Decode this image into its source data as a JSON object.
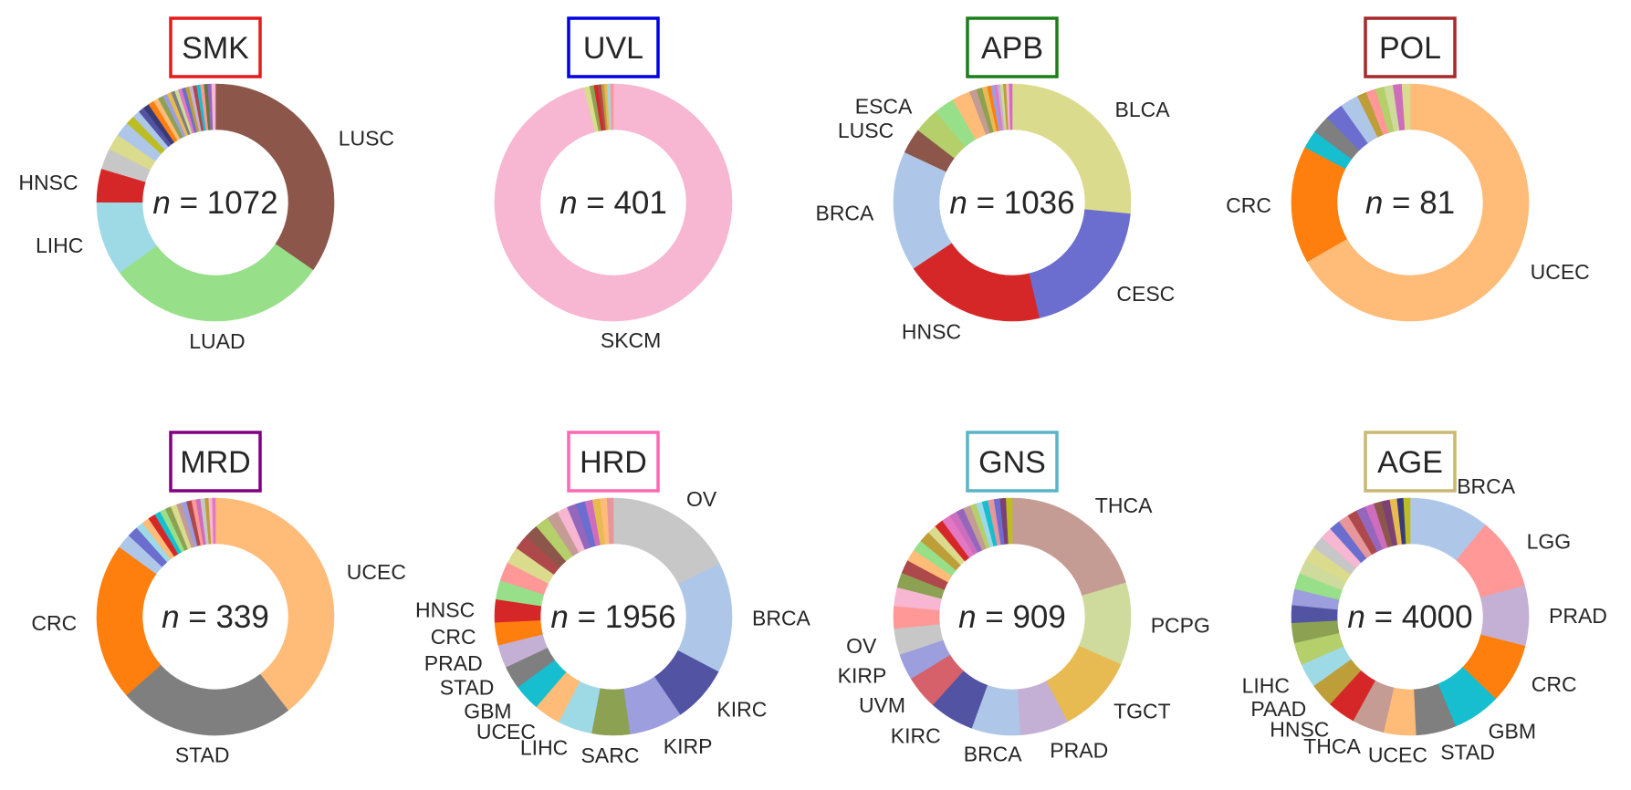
{
  "chart_data": [
    {
      "type": "pie",
      "title": "SMK",
      "title_box_color": "#e41a1c",
      "n_text": "= 1072",
      "n_value": 1072,
      "slices": [
        {
          "label": "LUSC",
          "value": 0.343,
          "color": "#8c564b"
        },
        {
          "label": "LUAD",
          "value": 0.3,
          "color": "#98df8a"
        },
        {
          "label": "LIHC",
          "value": 0.1,
          "color": "#9edae5"
        },
        {
          "label": "HNSC",
          "value": 0.045,
          "color": "#d62728"
        },
        {
          "label": "",
          "value": 0.028,
          "color": "#c7c7c7"
        },
        {
          "label": "",
          "value": 0.022,
          "color": "#dbdb8d"
        },
        {
          "label": "",
          "value": 0.02,
          "color": "#aec7e8"
        },
        {
          "label": "",
          "value": 0.012,
          "color": "#bcbd22"
        },
        {
          "label": "",
          "value": 0.01,
          "color": "#aec7e8"
        },
        {
          "label": "",
          "value": 0.008,
          "color": "#5254a3"
        },
        {
          "label": "",
          "value": 0.008,
          "color": "#393b79"
        },
        {
          "label": "",
          "value": 0.008,
          "color": "#ff7f0e"
        },
        {
          "label": "",
          "value": 0.007,
          "color": "#ffbb78"
        },
        {
          "label": "",
          "value": 0.007,
          "color": "#8ca252"
        },
        {
          "label": "",
          "value": 0.006,
          "color": "#9c9ede"
        },
        {
          "label": "",
          "value": 0.006,
          "color": "#e7ba52"
        },
        {
          "label": "",
          "value": 0.005,
          "color": "#7f7f7f"
        },
        {
          "label": "",
          "value": 0.005,
          "color": "#cedb9c"
        },
        {
          "label": "",
          "value": 0.005,
          "color": "#e377c2"
        },
        {
          "label": "",
          "value": 0.005,
          "color": "#6b6ecf"
        },
        {
          "label": "",
          "value": 0.005,
          "color": "#bd9e39"
        },
        {
          "label": "",
          "value": 0.005,
          "color": "#c5b0d5"
        },
        {
          "label": "",
          "value": 0.005,
          "color": "#ad494a"
        },
        {
          "label": "",
          "value": 0.005,
          "color": "#17becf"
        },
        {
          "label": "",
          "value": 0.005,
          "color": "#ff9896"
        },
        {
          "label": "",
          "value": 0.005,
          "color": "#637939"
        },
        {
          "label": "",
          "value": 0.005,
          "color": "#9467bd"
        },
        {
          "label": "",
          "value": 0.005,
          "color": "#f7b6d2"
        }
      ]
    },
    {
      "type": "pie",
      "title": "UVL",
      "title_box_color": "#0000e0",
      "n_text": "= 401",
      "n_value": 401,
      "slices": [
        {
          "label": "SKCM",
          "value": 0.96,
          "color": "#f7b6d2"
        },
        {
          "label": "",
          "value": 0.008,
          "color": "#dbdb8d"
        },
        {
          "label": "",
          "value": 0.006,
          "color": "#8ca252"
        },
        {
          "label": "",
          "value": 0.005,
          "color": "#d62728"
        },
        {
          "label": "",
          "value": 0.005,
          "color": "#ad494a"
        },
        {
          "label": "",
          "value": 0.004,
          "color": "#bd9e39"
        },
        {
          "label": "",
          "value": 0.004,
          "color": "#e7ba52"
        },
        {
          "label": "",
          "value": 0.004,
          "color": "#9edae5"
        },
        {
          "label": "",
          "value": 0.004,
          "color": "#ff9896"
        }
      ]
    },
    {
      "type": "pie",
      "title": "APB",
      "title_box_color": "#1a7f1a",
      "n_text": "= 1036",
      "n_value": 1036,
      "slices": [
        {
          "label": "BLCA",
          "value": 0.268,
          "color": "#dbdb8d"
        },
        {
          "label": "CESC",
          "value": 0.2,
          "color": "#6b6ecf"
        },
        {
          "label": "HNSC",
          "value": 0.195,
          "color": "#d62728"
        },
        {
          "label": "BRCA",
          "value": 0.165,
          "color": "#aec7e8"
        },
        {
          "label": "LUSC",
          "value": 0.035,
          "color": "#8c564b"
        },
        {
          "label": "ESCA",
          "value": 0.035,
          "color": "#b5cf6b"
        },
        {
          "label": "",
          "value": 0.028,
          "color": "#98df8a"
        },
        {
          "label": "",
          "value": 0.025,
          "color": "#ffbb78"
        },
        {
          "label": "",
          "value": 0.01,
          "color": "#c49c94"
        },
        {
          "label": "",
          "value": 0.008,
          "color": "#8ca252"
        },
        {
          "label": "",
          "value": 0.007,
          "color": "#e7ba52"
        },
        {
          "label": "",
          "value": 0.005,
          "color": "#ff7f0e"
        },
        {
          "label": "",
          "value": 0.005,
          "color": "#9c9ede"
        },
        {
          "label": "",
          "value": 0.004,
          "color": "#e377c2"
        },
        {
          "label": "",
          "value": 0.004,
          "color": "#c5b0d5"
        },
        {
          "label": "",
          "value": 0.004,
          "color": "#cedb9c"
        },
        {
          "label": "",
          "value": 0.004,
          "color": "#bd9e39"
        },
        {
          "label": "",
          "value": 0.004,
          "color": "#f7b6d2"
        },
        {
          "label": "",
          "value": 0.004,
          "color": "#ce6dbd"
        }
      ]
    },
    {
      "type": "pie",
      "title": "POL",
      "title_box_color": "#a52a2a",
      "n_text": "= 81",
      "n_value": 81,
      "slices": [
        {
          "label": "UCEC",
          "value": 0.667,
          "color": "#ffbb78"
        },
        {
          "label": "CRC",
          "value": 0.16,
          "color": "#ff7f0e"
        },
        {
          "label": "",
          "value": 0.025,
          "color": "#17becf"
        },
        {
          "label": "",
          "value": 0.025,
          "color": "#7f7f7f"
        },
        {
          "label": "",
          "value": 0.025,
          "color": "#6b6ecf"
        },
        {
          "label": "",
          "value": 0.025,
          "color": "#aec7e8"
        },
        {
          "label": "",
          "value": 0.013,
          "color": "#bd9e39"
        },
        {
          "label": "",
          "value": 0.013,
          "color": "#ff9896"
        },
        {
          "label": "",
          "value": 0.012,
          "color": "#b5cf6b"
        },
        {
          "label": "",
          "value": 0.012,
          "color": "#cedb9c"
        },
        {
          "label": "",
          "value": 0.012,
          "color": "#ce6dbd"
        },
        {
          "label": "",
          "value": 0.011,
          "color": "#dbdb8d"
        }
      ]
    },
    {
      "type": "pie",
      "title": "MRD",
      "title_box_color": "#800080",
      "n_text": "= 339",
      "n_value": 339,
      "slices": [
        {
          "label": "UCEC",
          "value": 0.395,
          "color": "#ffbb78"
        },
        {
          "label": "STAD",
          "value": 0.24,
          "color": "#7f7f7f"
        },
        {
          "label": "CRC",
          "value": 0.215,
          "color": "#ff7f0e"
        },
        {
          "label": "",
          "value": 0.02,
          "color": "#aec7e8"
        },
        {
          "label": "",
          "value": 0.015,
          "color": "#6b6ecf"
        },
        {
          "label": "",
          "value": 0.01,
          "color": "#9edae5"
        },
        {
          "label": "",
          "value": 0.01,
          "color": "#ffbb78"
        },
        {
          "label": "",
          "value": 0.01,
          "color": "#d62728"
        },
        {
          "label": "",
          "value": 0.008,
          "color": "#17becf"
        },
        {
          "label": "",
          "value": 0.008,
          "color": "#98df8a"
        },
        {
          "label": "",
          "value": 0.008,
          "color": "#8ca252"
        },
        {
          "label": "",
          "value": 0.008,
          "color": "#dbdb8d"
        },
        {
          "label": "",
          "value": 0.007,
          "color": "#c49c94"
        },
        {
          "label": "",
          "value": 0.007,
          "color": "#9c9ede"
        },
        {
          "label": "",
          "value": 0.007,
          "color": "#ad494a"
        },
        {
          "label": "",
          "value": 0.006,
          "color": "#ff9896"
        },
        {
          "label": "",
          "value": 0.006,
          "color": "#ce6dbd"
        },
        {
          "label": "",
          "value": 0.006,
          "color": "#c7c7c7"
        },
        {
          "label": "",
          "value": 0.005,
          "color": "#bd9e39"
        },
        {
          "label": "",
          "value": 0.005,
          "color": "#f7b6d2"
        },
        {
          "label": "",
          "value": 0.004,
          "color": "#e377c2"
        }
      ]
    },
    {
      "type": "pie",
      "title": "HRD",
      "title_box_color": "#ff69b4",
      "n_text": "= 1956",
      "n_value": 1956,
      "slices": [
        {
          "label": "OV",
          "value": 0.17,
          "color": "#c7c7c7"
        },
        {
          "label": "BRCA",
          "value": 0.145,
          "color": "#aec7e8"
        },
        {
          "label": "KIRC",
          "value": 0.075,
          "color": "#5254a3"
        },
        {
          "label": "KIRP",
          "value": 0.07,
          "color": "#9c9ede"
        },
        {
          "label": "SARC",
          "value": 0.05,
          "color": "#8ca252"
        },
        {
          "label": "LIHC",
          "value": 0.045,
          "color": "#9edae5"
        },
        {
          "label": "UCEC",
          "value": 0.035,
          "color": "#ffbb78"
        },
        {
          "label": "GBM",
          "value": 0.035,
          "color": "#17becf"
        },
        {
          "label": "STAD",
          "value": 0.03,
          "color": "#7f7f7f"
        },
        {
          "label": "PRAD",
          "value": 0.03,
          "color": "#c5b0d5"
        },
        {
          "label": "CRC",
          "value": 0.03,
          "color": "#ff7f0e"
        },
        {
          "label": "HNSC",
          "value": 0.03,
          "color": "#d62728"
        },
        {
          "label": "",
          "value": 0.025,
          "color": "#98df8a"
        },
        {
          "label": "",
          "value": 0.025,
          "color": "#ff9896"
        },
        {
          "label": "",
          "value": 0.022,
          "color": "#dbdb8d"
        },
        {
          "label": "",
          "value": 0.02,
          "color": "#ad494a"
        },
        {
          "label": "",
          "value": 0.018,
          "color": "#8c564b"
        },
        {
          "label": "",
          "value": 0.018,
          "color": "#b5cf6b"
        },
        {
          "label": "",
          "value": 0.015,
          "color": "#c49c94"
        },
        {
          "label": "",
          "value": 0.014,
          "color": "#f7b6d2"
        },
        {
          "label": "",
          "value": 0.012,
          "color": "#9467bd"
        },
        {
          "label": "",
          "value": 0.012,
          "color": "#6b6ecf"
        },
        {
          "label": "",
          "value": 0.01,
          "color": "#ce6dbd"
        },
        {
          "label": "",
          "value": 0.01,
          "color": "#e7ba52"
        },
        {
          "label": "",
          "value": 0.009,
          "color": "#ffbb78"
        },
        {
          "label": "",
          "value": 0.008,
          "color": "#e7969c"
        }
      ]
    },
    {
      "type": "pie",
      "title": "GNS",
      "title_box_color": "#5ab4c8",
      "n_text": "= 909",
      "n_value": 909,
      "slices": [
        {
          "label": "THCA",
          "value": 0.2,
          "color": "#c49c94"
        },
        {
          "label": "PCPG",
          "value": 0.11,
          "color": "#cedb9c"
        },
        {
          "label": "TGCT",
          "value": 0.105,
          "color": "#e7ba52"
        },
        {
          "label": "PRAD",
          "value": 0.065,
          "color": "#c5b0d5"
        },
        {
          "label": "BRCA",
          "value": 0.065,
          "color": "#aec7e8"
        },
        {
          "label": "KIRC",
          "value": 0.06,
          "color": "#5254a3"
        },
        {
          "label": "UVM",
          "value": 0.045,
          "color": "#d6616b"
        },
        {
          "label": "KIRP",
          "value": 0.035,
          "color": "#9c9ede"
        },
        {
          "label": "OV",
          "value": 0.035,
          "color": "#c7c7c7"
        },
        {
          "label": "",
          "value": 0.03,
          "color": "#ff9896"
        },
        {
          "label": "",
          "value": 0.025,
          "color": "#f7b6d2"
        },
        {
          "label": "",
          "value": 0.02,
          "color": "#8ca252"
        },
        {
          "label": "",
          "value": 0.018,
          "color": "#ad494a"
        },
        {
          "label": "",
          "value": 0.016,
          "color": "#ffbb78"
        },
        {
          "label": "",
          "value": 0.015,
          "color": "#98df8a"
        },
        {
          "label": "",
          "value": 0.015,
          "color": "#bd9e39"
        },
        {
          "label": "",
          "value": 0.012,
          "color": "#dbdb8d"
        },
        {
          "label": "",
          "value": 0.012,
          "color": "#d62728"
        },
        {
          "label": "",
          "value": 0.012,
          "color": "#e377c2"
        },
        {
          "label": "",
          "value": 0.01,
          "color": "#ce6dbd"
        },
        {
          "label": "",
          "value": 0.01,
          "color": "#9467bd"
        },
        {
          "label": "",
          "value": 0.01,
          "color": "#c49c94"
        },
        {
          "label": "",
          "value": 0.008,
          "color": "#b5cf6b"
        },
        {
          "label": "",
          "value": 0.008,
          "color": "#9edae5"
        },
        {
          "label": "",
          "value": 0.008,
          "color": "#17becf"
        },
        {
          "label": "",
          "value": 0.008,
          "color": "#e7969c"
        },
        {
          "label": "",
          "value": 0.008,
          "color": "#6b6ecf"
        },
        {
          "label": "",
          "value": 0.008,
          "color": "#7b4173"
        },
        {
          "label": "",
          "value": 0.008,
          "color": "#bcbd22"
        }
      ]
    },
    {
      "type": "pie",
      "title": "AGE",
      "title_box_color": "#c9b772",
      "n_text": "= 4000",
      "n_value": 4000,
      "slices": [
        {
          "label": "BRCA",
          "value": 0.1,
          "color": "#aec7e8"
        },
        {
          "label": "LGG",
          "value": 0.09,
          "color": "#ff9896"
        },
        {
          "label": "PRAD",
          "value": 0.075,
          "color": "#c5b0d5"
        },
        {
          "label": "CRC",
          "value": 0.075,
          "color": "#ff7f0e"
        },
        {
          "label": "GBM",
          "value": 0.06,
          "color": "#17becf"
        },
        {
          "label": "STAD",
          "value": 0.05,
          "color": "#7f7f7f"
        },
        {
          "label": "UCEC",
          "value": 0.04,
          "color": "#ffbb78"
        },
        {
          "label": "THCA",
          "value": 0.04,
          "color": "#c49c94"
        },
        {
          "label": "HNSC",
          "value": 0.035,
          "color": "#d62728"
        },
        {
          "label": "PAAD",
          "value": 0.03,
          "color": "#bd9e39"
        },
        {
          "label": "LIHC",
          "value": 0.03,
          "color": "#9edae5"
        },
        {
          "label": "",
          "value": 0.028,
          "color": "#b5cf6b"
        },
        {
          "label": "",
          "value": 0.025,
          "color": "#8ca252"
        },
        {
          "label": "",
          "value": 0.022,
          "color": "#5254a3"
        },
        {
          "label": "",
          "value": 0.02,
          "color": "#9c9ede"
        },
        {
          "label": "",
          "value": 0.02,
          "color": "#98df8a"
        },
        {
          "label": "",
          "value": 0.018,
          "color": "#cedb9c"
        },
        {
          "label": "",
          "value": 0.018,
          "color": "#dbdb8d"
        },
        {
          "label": "",
          "value": 0.016,
          "color": "#c7c7c7"
        },
        {
          "label": "",
          "value": 0.015,
          "color": "#f7b6d2"
        },
        {
          "label": "",
          "value": 0.014,
          "color": "#6b6ecf"
        },
        {
          "label": "",
          "value": 0.013,
          "color": "#e7969c"
        },
        {
          "label": "",
          "value": 0.012,
          "color": "#ad494a"
        },
        {
          "label": "",
          "value": 0.012,
          "color": "#9467bd"
        },
        {
          "label": "",
          "value": 0.011,
          "color": "#ce6dbd"
        },
        {
          "label": "",
          "value": 0.01,
          "color": "#8c564b"
        },
        {
          "label": "",
          "value": 0.01,
          "color": "#7b4173"
        },
        {
          "label": "",
          "value": 0.009,
          "color": "#e7ba52"
        },
        {
          "label": "",
          "value": 0.008,
          "color": "#393b79"
        },
        {
          "label": "",
          "value": 0.008,
          "color": "#bcbd22"
        }
      ]
    }
  ]
}
